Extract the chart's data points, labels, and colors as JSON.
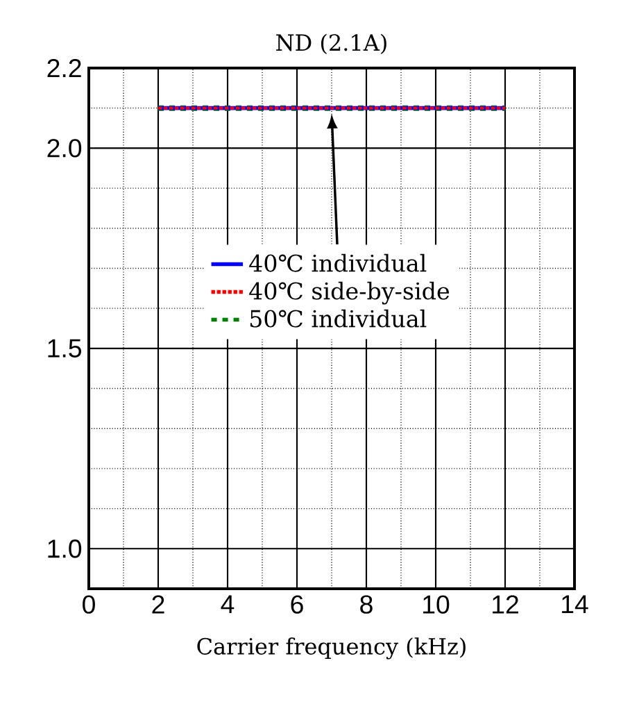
{
  "chart_data": {
    "type": "line",
    "title": "ND (2.1A)",
    "xlabel": "Carrier frequency (kHz)",
    "x": [
      2,
      12
    ],
    "series": [
      {
        "name": "40℃  individual",
        "color": "#0000ff",
        "line_style": "solid",
        "values": [
          2.1,
          2.1
        ]
      },
      {
        "name": "40℃  side-by-side",
        "color": "#ff0000",
        "line_style": "dotted",
        "values": [
          2.1,
          2.1
        ]
      },
      {
        "name": "50℃  individual",
        "color": "#008000",
        "line_style": "dashed",
        "values": [
          2.1,
          2.1
        ]
      }
    ],
    "xlim": [
      0,
      14
    ],
    "ylim": [
      0.9,
      2.2
    ],
    "xticks": [
      0,
      2,
      4,
      6,
      8,
      10,
      12,
      14
    ],
    "yticks": [
      {
        "value": 1.0,
        "label": "1.0"
      },
      {
        "value": 1.5,
        "label": "1.5"
      },
      {
        "value": 2.0,
        "label": "2.0"
      },
      {
        "value": 2.2,
        "label": "2.2"
      }
    ],
    "grid": true,
    "legend": "center",
    "marker": "none"
  }
}
